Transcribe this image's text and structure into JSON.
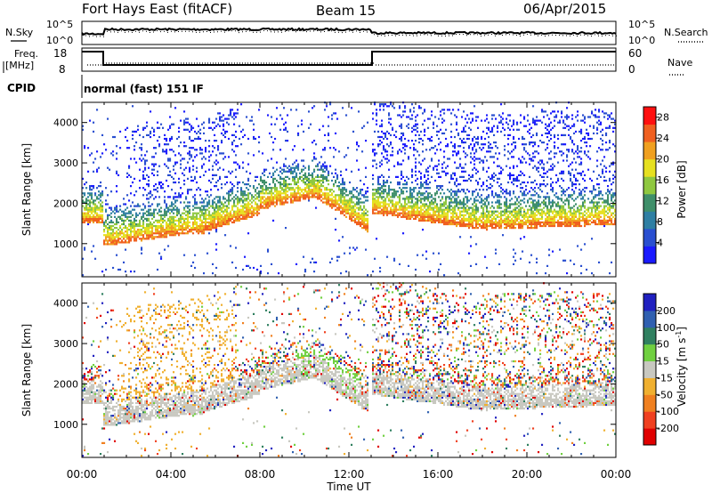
{
  "header": {
    "title": "Fort Hays East (fitACF)",
    "beam": "Beam 15",
    "date": "06/Apr/2015"
  },
  "noise_panel": {
    "left_label": "N.Sky",
    "right_label": "N.Search",
    "tick_top": "10^5",
    "tick_bottom": "10^0",
    "right_tick_top": "10^5",
    "right_tick_bottom": "10^0"
  },
  "freq_panel": {
    "left_label_1": "Freq.",
    "left_label_2": "[MHz]",
    "right_label": "Nave",
    "left_ticks": [
      "18",
      "8"
    ],
    "right_ticks": [
      "60",
      "0"
    ]
  },
  "cpid": {
    "label": "CPID",
    "text": "normal (fast) 151 IF"
  },
  "time_axis": {
    "title": "Time UT",
    "ticks": [
      "00:00",
      "04:00",
      "08:00",
      "12:00",
      "16:00",
      "20:00",
      "00:00"
    ]
  },
  "chart_data": [
    {
      "type": "heatmap",
      "panel": "power",
      "ylabel": "Slant Range [km]",
      "yticks": [
        "1000",
        "2000",
        "3000",
        "4000"
      ],
      "ylim": [
        180,
        4500
      ],
      "xlim_hours": [
        0,
        24
      ],
      "colorbar": {
        "label": "Power [dB]",
        "ticks": [
          "4",
          "8",
          "12",
          "16",
          "20",
          "24",
          "28"
        ],
        "range": [
          0,
          30
        ],
        "colors": [
          "#1a1aff",
          "#2a4fd0",
          "#2f7fa3",
          "#3f8f6a",
          "#8fc840",
          "#e6e020",
          "#f0a020",
          "#f06020",
          "#ff1010"
        ]
      }
    },
    {
      "type": "heatmap",
      "panel": "velocity",
      "ylabel": "Slant Range [km]",
      "yticks": [
        "1000",
        "2000",
        "3000",
        "4000"
      ],
      "ylim": [
        180,
        4500
      ],
      "xlim_hours": [
        0,
        24
      ],
      "colorbar": {
        "label": "Velocity [m s^-1]",
        "ticks": [
          "200",
          "100",
          "50",
          "15",
          "-15",
          "-50",
          "-100",
          "-200"
        ],
        "colors": [
          "#2020c0",
          "#3060b0",
          "#308060",
          "#70d040",
          "#c8c8c0",
          "#f0b030",
          "#f08020",
          "#f04020",
          "#e00000"
        ]
      }
    }
  ]
}
